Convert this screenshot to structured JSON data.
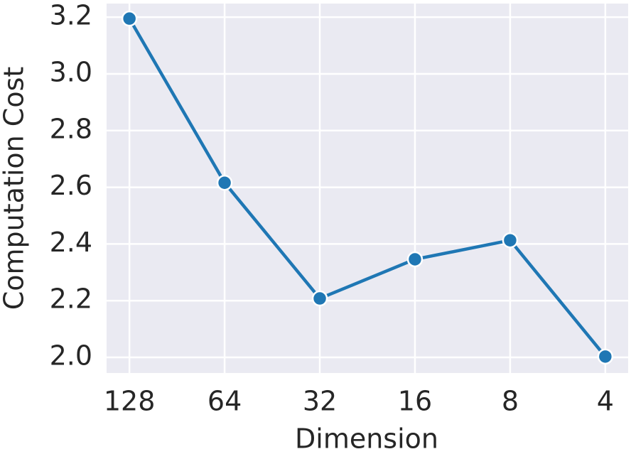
{
  "chart_data": {
    "type": "line",
    "x_label": "Dimension",
    "y_label": "Computation Cost",
    "categories": [
      "128",
      "64",
      "32",
      "16",
      "8",
      "4"
    ],
    "series": [
      {
        "name": "Computation Cost",
        "color": "#1f77b4",
        "values": [
          3.195,
          2.616,
          2.208,
          2.346,
          2.413,
          2.003
        ]
      }
    ],
    "ylim": [
      1.945,
      3.248
    ],
    "yticks": [
      {
        "value": 2.0,
        "label": "2.0"
      },
      2.2,
      2.4,
      2.6,
      2.8,
      {
        "value": 3.0,
        "label": "3.0"
      },
      3.2
    ],
    "grid": true
  }
}
